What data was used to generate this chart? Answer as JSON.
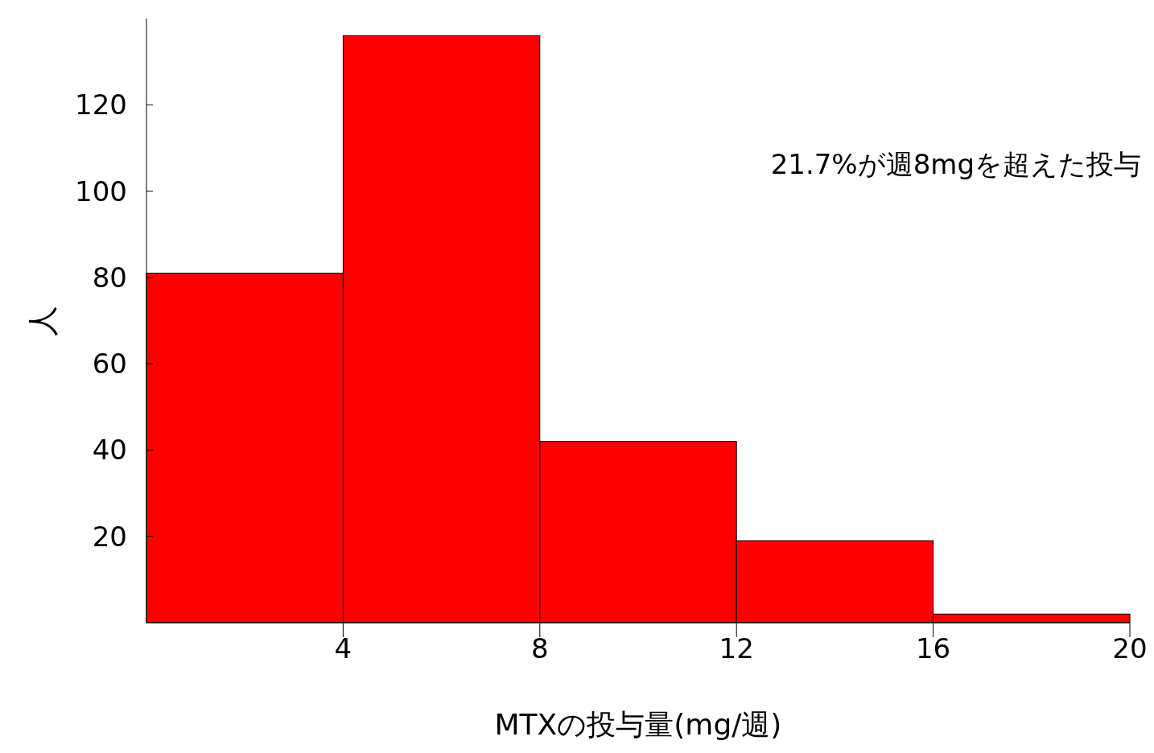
{
  "chart_data": {
    "type": "histogram",
    "bins": [
      0,
      4,
      8,
      12,
      16,
      20
    ],
    "values": [
      81,
      136,
      42,
      19,
      2
    ],
    "color": "#ff0000",
    "xlim": [
      0,
      20
    ],
    "xticks": [
      4,
      8,
      12,
      16,
      20
    ],
    "ylim": [
      0,
      140
    ],
    "yticks": [
      20,
      40,
      60,
      80,
      100,
      120
    ],
    "xlabel": "MTXの投与量(mg/週)",
    "ylabel": "人",
    "annotations": [
      "21.7%が週8mgを超えた投与"
    ],
    "grid": false
  }
}
